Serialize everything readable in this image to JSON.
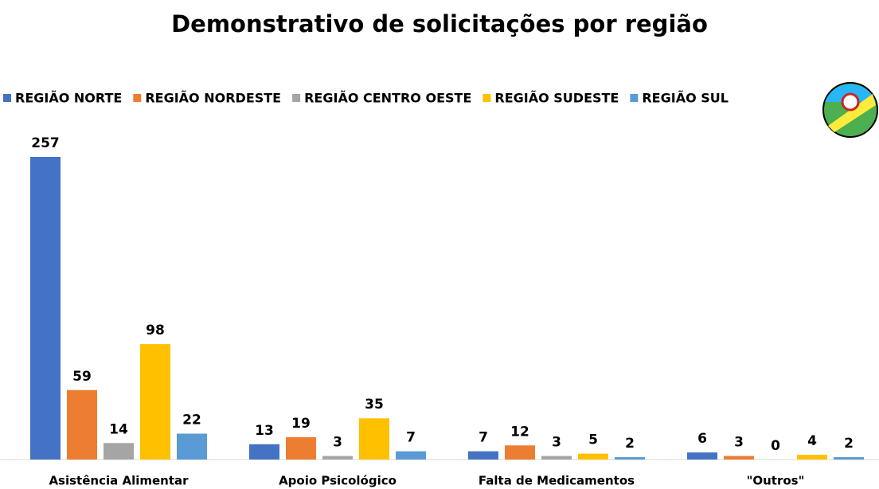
{
  "chart_data": {
    "type": "bar",
    "title": "Demonstrativo de solicitações por região",
    "categories": [
      "Asistência Alimentar",
      "Apoio Psicológico",
      "Falta de Medicamentos",
      "\"Outros\""
    ],
    "series": [
      {
        "name": "REGIÃO NORTE",
        "color": "#4472c4",
        "values": [
          257,
          13,
          7,
          6
        ]
      },
      {
        "name": "REGIÃO NORDESTE",
        "color": "#ed7d31",
        "values": [
          59,
          19,
          12,
          3
        ]
      },
      {
        "name": "REGIÃO CENTRO OESTE",
        "color": "#a5a5a5",
        "values": [
          14,
          3,
          3,
          0
        ]
      },
      {
        "name": "REGIÃO SUDESTE",
        "color": "#ffc000",
        "values": [
          98,
          35,
          5,
          4
        ]
      },
      {
        "name": "REGIÃO SUL",
        "color": "#5b9bd5",
        "values": [
          22,
          7,
          2,
          2
        ]
      }
    ],
    "legend": "top"
  }
}
